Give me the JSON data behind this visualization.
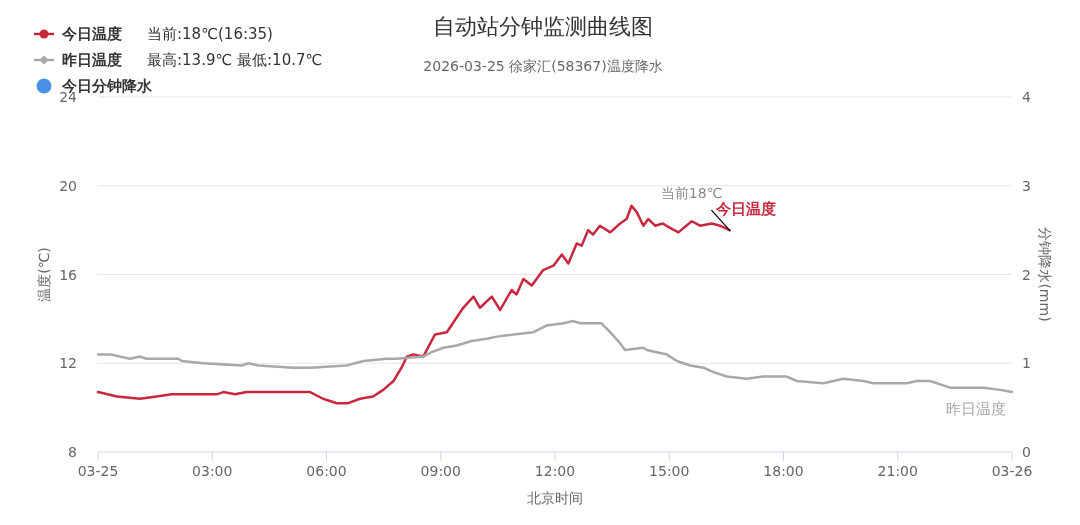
{
  "chart_data": {
    "type": "line",
    "title": "自动站分钟监测曲线图",
    "subtitle": "2026-03-25 徐家汇(58367)温度降水",
    "xlabel": "北京时间",
    "ylabel": "温度(℃)",
    "y2label": "分钟降水(mm)",
    "xlim": [
      0,
      24
    ],
    "xticks": [
      {
        "value": 0,
        "label": "03-25"
      },
      {
        "value": 3,
        "label": "03:00"
      },
      {
        "value": 6,
        "label": "06:00"
      },
      {
        "value": 9,
        "label": "09:00"
      },
      {
        "value": 12,
        "label": "12:00"
      },
      {
        "value": 15,
        "label": "15:00"
      },
      {
        "value": 18,
        "label": "18:00"
      },
      {
        "value": 21,
        "label": "21:00"
      },
      {
        "value": 24,
        "label": "03-26"
      }
    ],
    "ylim": [
      8,
      24
    ],
    "yticks": [
      8,
      12,
      16,
      20,
      24
    ],
    "y2lim": [
      0,
      4
    ],
    "y2ticks": [
      0,
      1,
      2,
      3,
      4
    ],
    "grid": "y",
    "legend": "top left",
    "series": [
      {
        "name": "今日温度",
        "color": "#c7283e",
        "x": [
          0,
          0.25,
          0.5,
          1.1,
          1.54,
          1.93,
          3.12,
          3.29,
          3.6,
          3.9,
          5.57,
          5.91,
          6.27,
          6.57,
          6.88,
          7.22,
          7.49,
          7.76,
          7.97,
          8.11,
          8.28,
          8.54,
          8.85,
          9.16,
          9.59,
          9.86,
          10.03,
          10.34,
          10.56,
          10.86,
          10.99,
          11.17,
          11.39,
          11.69,
          11.96,
          12.18,
          12.35,
          12.57,
          12.7,
          12.87,
          13.0,
          13.18,
          13.45,
          13.71,
          13.88,
          14.01,
          14.15,
          14.32,
          14.45,
          14.63,
          14.83,
          15.02,
          15.24,
          15.59,
          15.81,
          16.12,
          16.33,
          16.58
        ],
        "values": [
          10.7,
          10.6,
          10.5,
          10.4,
          10.5,
          10.6,
          10.6,
          10.7,
          10.6,
          10.7,
          10.7,
          10.4,
          10.2,
          10.2,
          10.4,
          10.5,
          10.8,
          11.2,
          11.8,
          12.3,
          12.4,
          12.3,
          13.3,
          13.4,
          14.5,
          15.0,
          14.5,
          15.0,
          14.4,
          15.3,
          15.1,
          15.8,
          15.5,
          16.2,
          16.4,
          16.9,
          16.5,
          17.4,
          17.3,
          18.0,
          17.8,
          18.2,
          17.9,
          18.3,
          18.5,
          19.1,
          18.8,
          18.2,
          18.5,
          18.2,
          18.3,
          18.1,
          17.9,
          18.4,
          18.2,
          18.3,
          18.2,
          18.0
        ]
      },
      {
        "name": "昨日温度",
        "color": "#a8a8a8",
        "x": [
          0,
          0.32,
          0.84,
          1.1,
          1.28,
          2.11,
          2.2,
          2.77,
          3.77,
          3.95,
          4.21,
          5.13,
          5.26,
          5.57,
          6.53,
          6.97,
          7.58,
          7.84,
          8.54,
          8.76,
          9.07,
          9.42,
          9.81,
          10.21,
          10.47,
          10.91,
          11.43,
          11.78,
          12.22,
          12.48,
          12.66,
          13.22,
          13.45,
          13.71,
          13.84,
          14.32,
          14.41,
          14.67,
          14.93,
          15.2,
          15.55,
          15.9,
          16.16,
          16.51,
          17.03,
          17.47,
          18.08,
          18.35,
          19.05,
          19.57,
          20.1,
          20.36,
          21.24,
          21.5,
          21.85,
          22.37,
          23.25,
          23.69,
          24
        ],
        "values": [
          12.4,
          12.4,
          12.2,
          12.3,
          12.2,
          12.2,
          12.1,
          12.0,
          11.9,
          12.0,
          11.9,
          11.8,
          11.8,
          11.8,
          11.9,
          12.1,
          12.2,
          12.2,
          12.3,
          12.5,
          12.7,
          12.8,
          13.0,
          13.1,
          13.2,
          13.3,
          13.4,
          13.7,
          13.8,
          13.9,
          13.8,
          13.8,
          13.4,
          12.9,
          12.6,
          12.7,
          12.6,
          12.5,
          12.4,
          12.1,
          11.9,
          11.8,
          11.6,
          11.4,
          11.3,
          11.4,
          11.4,
          11.2,
          11.1,
          11.3,
          11.2,
          11.1,
          11.1,
          11.2,
          11.2,
          10.9,
          10.9,
          10.8,
          10.7
        ]
      },
      {
        "name": "今日分钟降水",
        "color": "#4a90e8",
        "type": "bar"
      }
    ],
    "annotations": [
      {
        "text": "当前18℃",
        "x": 16.58,
        "y": 18.0
      },
      "当前:18℃(16:35)",
      "最高:13.9℃ 最低:10.7℃"
    ]
  }
}
